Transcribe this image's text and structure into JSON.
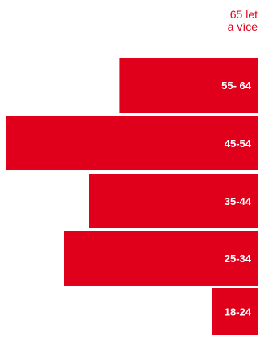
{
  "chart_data": {
    "type": "bar",
    "orientation": "horizontal",
    "categories": [
      "65 let\na více",
      "55- 64",
      "45-54",
      "35-44",
      "25-34",
      "18-24"
    ],
    "values": [
      0,
      55,
      100,
      67,
      77,
      18
    ],
    "color": "#e0001b",
    "title": "",
    "xlabel": "",
    "ylabel": "",
    "xlim": [
      0,
      100
    ],
    "grid": false,
    "legend": "none"
  }
}
